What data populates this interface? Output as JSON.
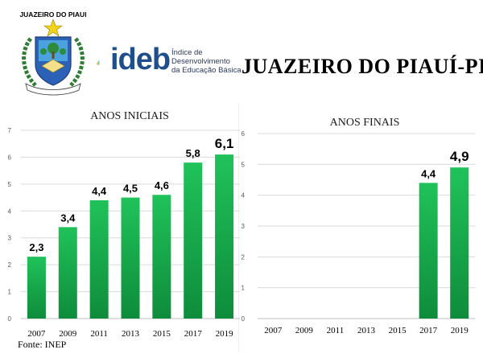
{
  "header": {
    "crest_text": "JUAZEIRO DO PIAUI",
    "ideb_word": "ideb",
    "ideb_sub": [
      "Índice de",
      "Desenvolvimento",
      "da Educação Básica"
    ],
    "headline": "JUAZEIRO DO PIAUÍ-PI"
  },
  "footer": {
    "source": "Fonte: INEP"
  },
  "colors": {
    "bar_top": "#20c25a",
    "bar_bottom": "#0e8c3b",
    "grid": "#d9d9d9",
    "axis_text": "#595959"
  },
  "chart_data": [
    {
      "type": "bar",
      "title": "ANOS INICIAIS",
      "categories": [
        "2007",
        "2009",
        "2011",
        "2013",
        "2015",
        "2017",
        "2019"
      ],
      "values": [
        2.3,
        3.4,
        4.4,
        4.5,
        4.6,
        5.8,
        6.1
      ],
      "value_labels": [
        "2,3",
        "3,4",
        "4,4",
        "4,5",
        "4,6",
        "5,8",
        "6,1"
      ],
      "ylim": [
        0,
        7
      ],
      "yticks": [
        "0",
        "1",
        "2",
        "3",
        "4",
        "5",
        "6",
        "7"
      ],
      "grid": true,
      "legend": "none"
    },
    {
      "type": "bar",
      "title": "ANOS FINAIS",
      "categories": [
        "2007",
        "2009",
        "2011",
        "2013",
        "2015",
        "2017",
        "2019"
      ],
      "values": [
        null,
        null,
        null,
        null,
        null,
        4.4,
        4.9
      ],
      "value_labels": [
        "",
        "",
        "",
        "",
        "",
        "4,4",
        "4,9"
      ],
      "ylim": [
        0,
        6
      ],
      "yticks": [
        "0",
        "1",
        "2",
        "3",
        "4",
        "5",
        "6"
      ],
      "grid": true,
      "legend": "none"
    }
  ]
}
